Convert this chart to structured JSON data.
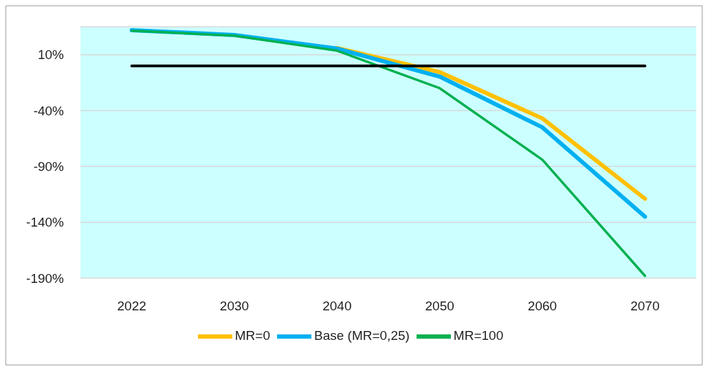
{
  "chart_data": {
    "type": "line",
    "categories": [
      "2022",
      "2030",
      "2040",
      "2050",
      "2060",
      "2070"
    ],
    "series": [
      {
        "name": "MR=0",
        "color": "#ffc000",
        "values": [
          null,
          null,
          16,
          -5.6,
          -47,
          -119
        ]
      },
      {
        "name": "Base (MR=0,25)",
        "color": "#00b0f0",
        "values": [
          32,
          27.6,
          15.5,
          -9.6,
          -55,
          -135
        ]
      },
      {
        "name": "MR=100",
        "color": "#00b050",
        "values": [
          31.5,
          27,
          13.6,
          -20,
          -84,
          -188
        ]
      },
      {
        "color": "#000000",
        "values": [
          0,
          0,
          0,
          0,
          0,
          0
        ]
      }
    ],
    "ylim": [
      -190,
      35
    ],
    "yticks": [
      {
        "value": 10,
        "label": "10%"
      },
      {
        "value": -40,
        "label": "-40%"
      },
      {
        "value": -90,
        "label": "-90%"
      },
      {
        "value": -140,
        "label": "-140%"
      },
      {
        "value": -190,
        "label": "-190%"
      }
    ],
    "grid": "y",
    "legend": "bottom",
    "marker": "none",
    "line_style": "solid"
  }
}
